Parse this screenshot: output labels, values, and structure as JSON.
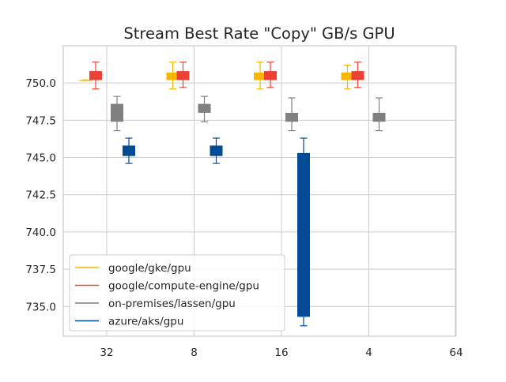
{
  "chart_data": {
    "type": "box",
    "title": "Stream Best Rate \"Copy\" GB/s GPU",
    "xlabel": "",
    "ylabel": "",
    "categories": [
      "32",
      "8",
      "16",
      "4",
      "64"
    ],
    "ylim": [
      733.0,
      752.5
    ],
    "yticks": [
      735.0,
      737.5,
      740.0,
      742.5,
      745.0,
      747.5,
      750.0
    ],
    "ytick_labels": [
      "735.0",
      "737.5",
      "740.0",
      "742.5",
      "745.0",
      "747.5",
      "750.0"
    ],
    "grid": true,
    "legend_position": "bottom-left",
    "series": [
      {
        "name": "google/gke/gpu",
        "color": "#f6b700",
        "boxes": [
          {
            "category": "32",
            "whisker_low": 750.2,
            "q1": 750.2,
            "q3": 750.2,
            "whisker_high": 750.2
          },
          {
            "category": "8",
            "whisker_low": 749.6,
            "q1": 750.2,
            "q3": 750.7,
            "whisker_high": 751.4
          },
          {
            "category": "16",
            "whisker_low": 749.6,
            "q1": 750.2,
            "q3": 750.7,
            "whisker_high": 751.4
          },
          {
            "category": "4",
            "whisker_low": 749.6,
            "q1": 750.2,
            "q3": 750.7,
            "whisker_high": 751.2
          }
        ]
      },
      {
        "name": "google/compute-engine/gpu",
        "color": "#ea4335",
        "boxes": [
          {
            "category": "32",
            "whisker_low": 749.6,
            "q1": 750.2,
            "q3": 750.8,
            "whisker_high": 751.4
          },
          {
            "category": "8",
            "whisker_low": 749.7,
            "q1": 750.2,
            "q3": 750.8,
            "whisker_high": 751.4
          },
          {
            "category": "16",
            "whisker_low": 749.7,
            "q1": 750.2,
            "q3": 750.8,
            "whisker_high": 751.4
          },
          {
            "category": "4",
            "whisker_low": 749.7,
            "q1": 750.2,
            "q3": 750.8,
            "whisker_high": 751.4
          }
        ]
      },
      {
        "name": "on-premises/lassen/gpu",
        "color": "#808080",
        "boxes": [
          {
            "category": "32",
            "whisker_low": 746.8,
            "q1": 747.4,
            "q3": 748.6,
            "whisker_high": 749.1
          },
          {
            "category": "8",
            "whisker_low": 747.4,
            "q1": 748.0,
            "q3": 748.6,
            "whisker_high": 749.1
          },
          {
            "category": "16",
            "whisker_low": 746.8,
            "q1": 747.4,
            "q3": 748.0,
            "whisker_high": 749.0
          },
          {
            "category": "4",
            "whisker_low": 746.8,
            "q1": 747.4,
            "q3": 748.0,
            "whisker_high": 749.0
          }
        ]
      },
      {
        "name": "azure/aks/gpu",
        "color": "#004b93",
        "boxes": [
          {
            "category": "32",
            "whisker_low": 744.6,
            "q1": 745.1,
            "q3": 745.8,
            "whisker_high": 746.3
          },
          {
            "category": "8",
            "whisker_low": 744.6,
            "q1": 745.1,
            "q3": 745.8,
            "whisker_high": 746.3
          },
          {
            "category": "16",
            "whisker_low": 733.7,
            "q1": 734.3,
            "q3": 745.3,
            "whisker_high": 746.3
          }
        ]
      }
    ]
  }
}
